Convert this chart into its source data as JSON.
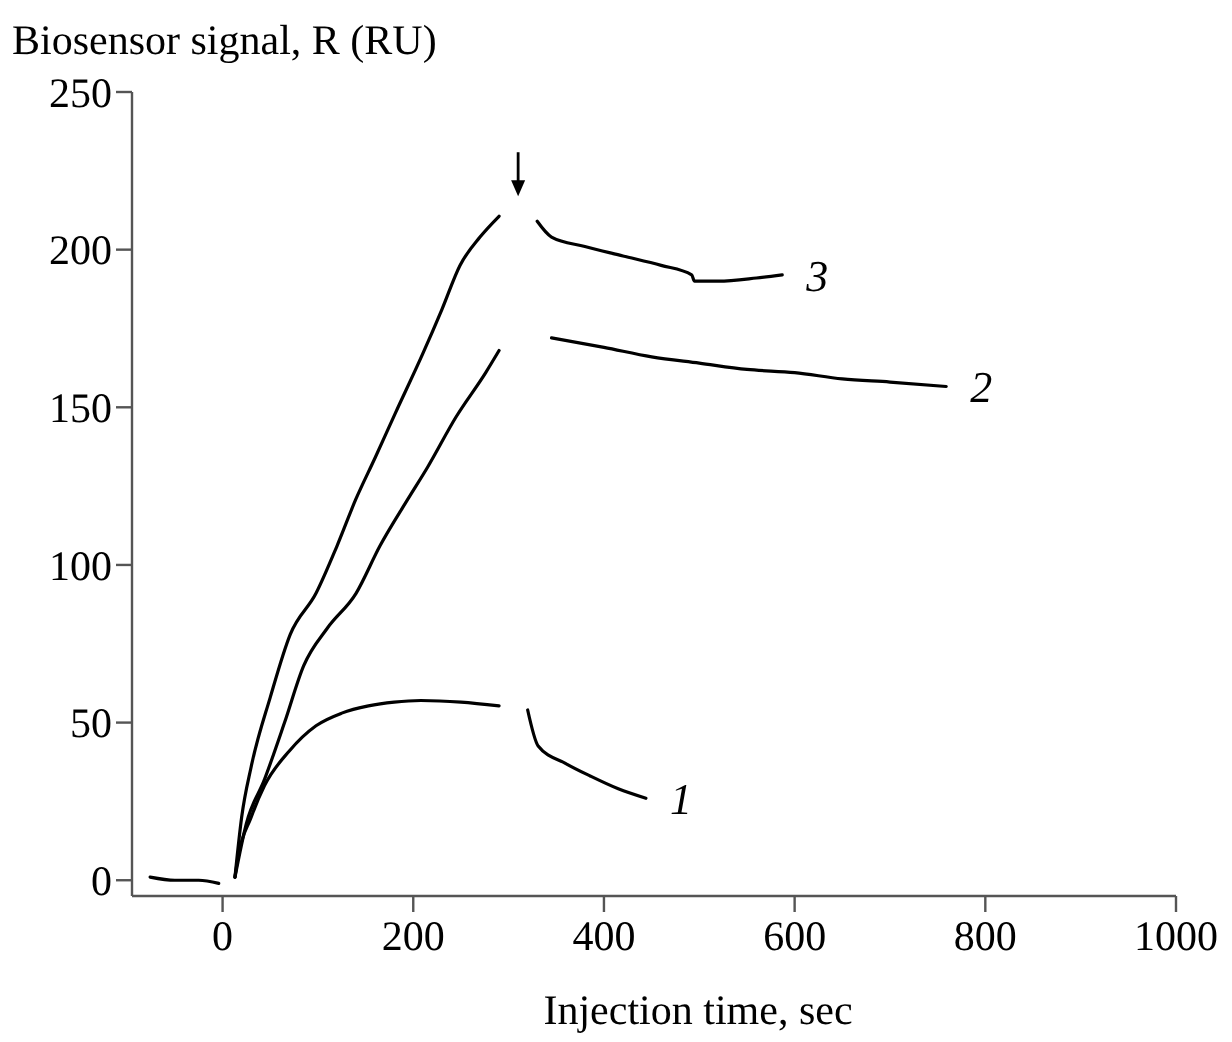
{
  "chart_data": {
    "type": "line",
    "ylabel": "Biosensor signal, R (RU)",
    "xlabel": "Injection time, sec",
    "xlim": [
      -95,
      1000
    ],
    "xticks": [
      0,
      200,
      400,
      600,
      800,
      1000
    ],
    "ylim": [
      -5,
      250
    ],
    "yticks": [
      0,
      50,
      100,
      150,
      200,
      250
    ],
    "grid": false,
    "marker": "none",
    "line_style": "solid",
    "series": [
      {
        "color": "#000000",
        "x": [
          -76,
          -50,
          -25,
          -4
        ],
        "values": [
          1,
          0,
          0,
          -1
        ]
      },
      {
        "name": "1",
        "color": "#000000",
        "x": [
          13,
          16,
          30,
          44,
          70,
          98,
          125,
          153,
          180,
          208,
          250,
          290,
          307,
          320,
          331,
          360,
          386,
          415,
          444
        ],
        "values": [
          1,
          7,
          20,
          30,
          41,
          49,
          53,
          55.3,
          56.5,
          57,
          56.5,
          55.3,
          null,
          54,
          42.6,
          37,
          33,
          29,
          26
        ]
      },
      {
        "name": "2",
        "color": "#000000",
        "x": [
          13,
          25,
          44,
          65,
          85,
          110,
          140,
          165,
          194,
          215,
          245,
          276,
          290,
          314,
          345,
          400,
          450,
          500,
          550,
          600,
          650,
          700,
          759
        ],
        "values": [
          1,
          18,
          32,
          50,
          68,
          80,
          91,
          106,
          120.7,
          131,
          147,
          161,
          168,
          null,
          172,
          169,
          166,
          164,
          162,
          161,
          159,
          158,
          156.6
        ]
      },
      {
        "name": "3",
        "color": "#000000",
        "x": [
          13,
          20,
          30,
          50,
          71,
          98,
          120,
          140,
          160,
          181,
          210,
          230,
          249,
          270,
          290,
          310,
          330,
          345,
          380,
          420,
          460,
          492,
          495,
          520,
          560,
          587
        ],
        "values": [
          1,
          20,
          36,
          58,
          78,
          91,
          106,
          121,
          134,
          148,
          167,
          181,
          195,
          204,
          210.6,
          null,
          209,
          204,
          201,
          198,
          195,
          192,
          190,
          190,
          191,
          192
        ]
      }
    ]
  }
}
